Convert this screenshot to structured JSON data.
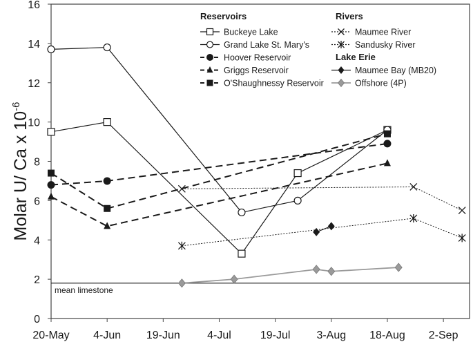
{
  "chart_data": {
    "type": "line",
    "title": "",
    "xlabel": "",
    "ylabel": "Molar U/ Ca x 10",
    "ylabel_exponent": "-6",
    "ylim": [
      0,
      16
    ],
    "yticks": [
      0,
      2,
      4,
      6,
      8,
      10,
      12,
      14,
      16
    ],
    "xlim": [
      "2015-05-20",
      "2015-09-09"
    ],
    "xticks": [
      {
        "date": "2015-05-20",
        "label": "20-May"
      },
      {
        "date": "2015-06-04",
        "label": "4-Jun"
      },
      {
        "date": "2015-06-19",
        "label": "19-Jun"
      },
      {
        "date": "2015-07-04",
        "label": "4-Jul"
      },
      {
        "date": "2015-07-19",
        "label": "19-Jul"
      },
      {
        "date": "2015-08-03",
        "label": "3-Aug"
      },
      {
        "date": "2015-08-18",
        "label": "18-Aug"
      },
      {
        "date": "2015-09-02",
        "label": "2-Sep"
      }
    ],
    "grid": false,
    "reference_line": {
      "y": 1.8,
      "label": "mean limestone"
    },
    "legend_placement": "top-right",
    "legend_groups": [
      {
        "title": "Reservoirs",
        "series": [
          0,
          1,
          2,
          3,
          4
        ]
      },
      {
        "title": "Rivers",
        "series": [
          5,
          6
        ]
      },
      {
        "title": "Lake Erie",
        "series": [
          7,
          8
        ]
      }
    ],
    "series": [
      {
        "name": "Buckeye Lake",
        "color": "#1a1a1a",
        "line": "solid",
        "marker": "square-open",
        "x": [
          "2015-05-20",
          "2015-06-04",
          "2015-07-10",
          "2015-07-25",
          "2015-08-18"
        ],
        "y": [
          9.5,
          10.0,
          3.3,
          7.4,
          9.6
        ]
      },
      {
        "name": "Grand Lake St. Mary's",
        "color": "#1a1a1a",
        "line": "solid",
        "marker": "circle-open",
        "x": [
          "2015-05-20",
          "2015-06-04",
          "2015-07-10",
          "2015-07-25",
          "2015-08-18"
        ],
        "y": [
          13.7,
          13.8,
          5.4,
          6.0,
          9.6
        ]
      },
      {
        "name": "Hoover Reservoir",
        "color": "#1a1a1a",
        "line": "dashed",
        "marker": "circle",
        "x": [
          "2015-05-20",
          "2015-06-04",
          "2015-08-18"
        ],
        "y": [
          6.8,
          7.0,
          8.9
        ]
      },
      {
        "name": "Griggs Reservoir",
        "color": "#1a1a1a",
        "line": "dashed",
        "marker": "triangle",
        "x": [
          "2015-05-20",
          "2015-06-04",
          "2015-08-18"
        ],
        "y": [
          6.2,
          4.7,
          7.9
        ]
      },
      {
        "name": "O'Shaughnessy Reservoir",
        "color": "#1a1a1a",
        "line": "dashed",
        "marker": "square",
        "x": [
          "2015-05-20",
          "2015-06-04",
          "2015-08-18"
        ],
        "y": [
          7.4,
          5.6,
          9.4
        ]
      },
      {
        "name": "Maumee River",
        "color": "#1a1a1a",
        "line": "dotted",
        "marker": "x",
        "x": [
          "2015-06-24",
          "2015-08-25",
          "2015-09-07"
        ],
        "y": [
          6.6,
          6.7,
          5.5
        ]
      },
      {
        "name": "Sandusky River",
        "color": "#1a1a1a",
        "line": "dotted",
        "marker": "asterisk",
        "x": [
          "2015-06-24",
          "2015-08-25",
          "2015-09-07"
        ],
        "y": [
          3.7,
          5.1,
          4.1
        ]
      },
      {
        "name": "Maumee Bay (MB20)",
        "color": "#1a1a1a",
        "line": "solid",
        "marker": "diamond",
        "x": [
          "2015-07-30",
          "2015-08-03"
        ],
        "y": [
          4.4,
          4.7
        ]
      },
      {
        "name": "Offshore (4P)",
        "color": "#9a9a9a",
        "line": "solid",
        "marker": "diamond-gray",
        "x": [
          "2015-06-24",
          "2015-07-08",
          "2015-07-30",
          "2015-08-03",
          "2015-08-21"
        ],
        "y": [
          1.8,
          2.0,
          2.5,
          2.4,
          2.6
        ]
      }
    ]
  }
}
